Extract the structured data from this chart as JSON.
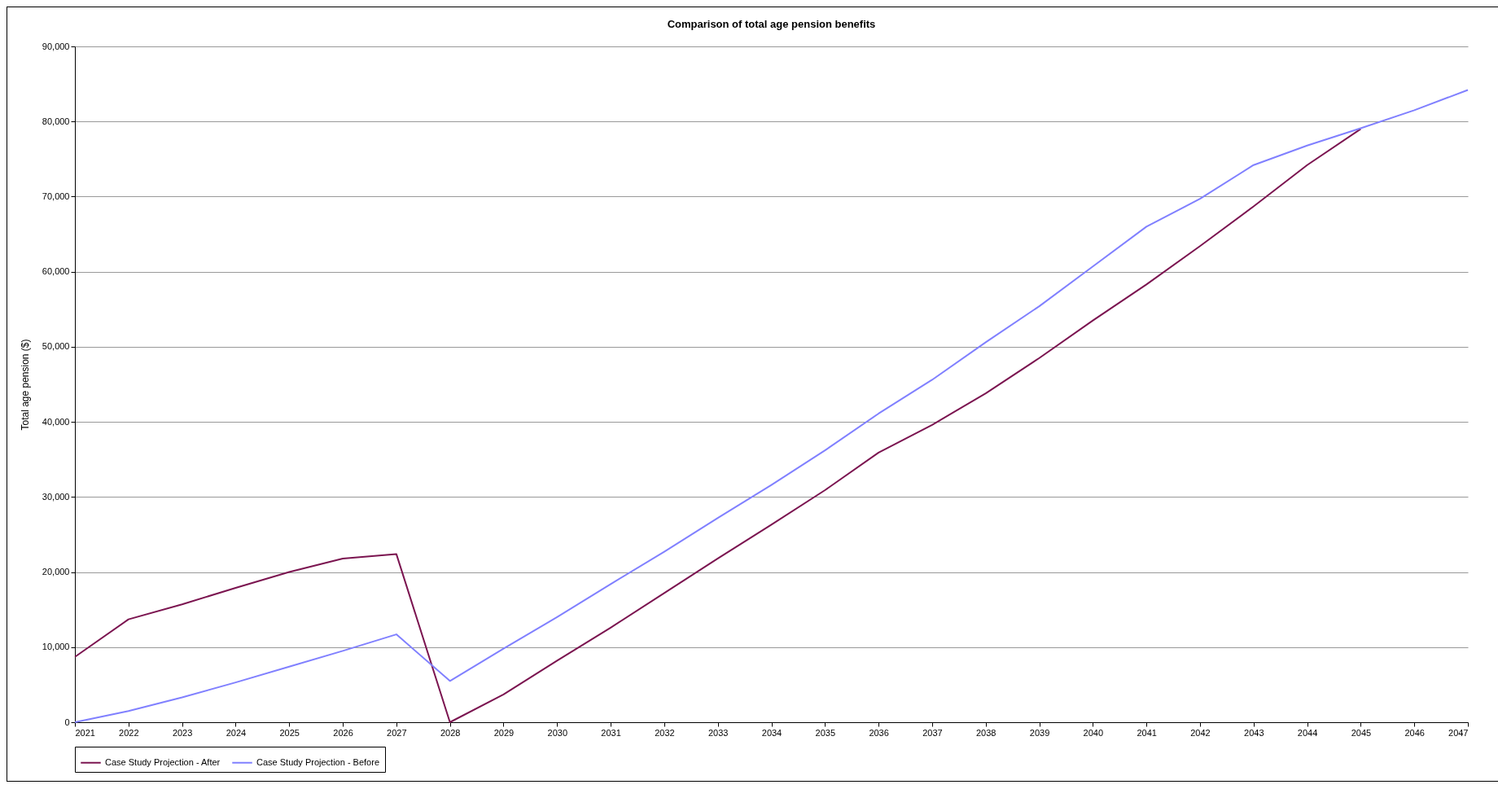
{
  "chart_data": {
    "type": "line",
    "title": "Comparison of total age pension benefits",
    "ylabel": "Total age pension ($)",
    "categories": [
      "2021",
      "2022",
      "2023",
      "2024",
      "2025",
      "2026",
      "2027",
      "2028",
      "2029",
      "2030",
      "2031",
      "2032",
      "2033",
      "2034",
      "2035",
      "2036",
      "2037",
      "2038",
      "2039",
      "2040",
      "2041",
      "2042",
      "2043",
      "2044",
      "2045",
      "2046",
      "2047"
    ],
    "series": [
      {
        "name": "Case Study Projection - After",
        "color": "#7b1450",
        "values": [
          8700,
          13700,
          15700,
          17900,
          20000,
          21800,
          22400,
          0,
          3700,
          8200,
          12600,
          17200,
          21800,
          26300,
          30900,
          35900,
          39600,
          43800,
          48500,
          53500,
          58300,
          63400,
          68700,
          74200,
          79000,
          null,
          null
        ]
      },
      {
        "name": "Case Study Projection - Before",
        "color": "#8080ff",
        "values": [
          0,
          1500,
          3300,
          5300,
          7400,
          9500,
          11700,
          5500,
          9800,
          14000,
          18400,
          22700,
          27200,
          31600,
          36200,
          41100,
          45600,
          50600,
          55400,
          60700,
          66000,
          69700,
          74200,
          76800,
          79100,
          81500,
          84200
        ]
      }
    ],
    "ylim": [
      0,
      90000
    ],
    "yticks": [
      0,
      {
        "value": 10000,
        "label": "10,000"
      },
      {
        "value": 20000,
        "label": "20,000"
      },
      {
        "value": 30000,
        "label": "30,000"
      },
      {
        "value": 40000,
        "label": "40,000"
      },
      {
        "value": 50000,
        "label": "50,000"
      },
      {
        "value": 60000,
        "label": "60,000"
      },
      {
        "value": 70000,
        "label": "70,000"
      },
      {
        "value": 80000,
        "label": "80,000"
      },
      {
        "value": 90000,
        "label": "90,000"
      }
    ],
    "grid": "y",
    "legend": "bottom",
    "marker": "none",
    "line_style": "solid"
  }
}
